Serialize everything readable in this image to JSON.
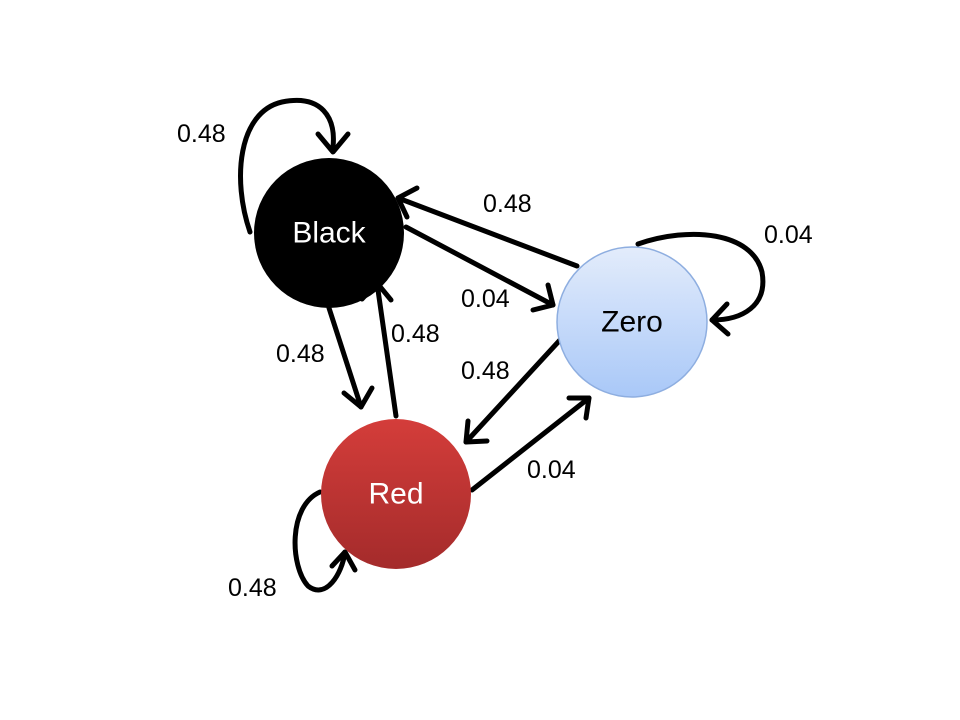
{
  "nodes": {
    "black": {
      "label": "Black",
      "fill": "#000000",
      "text_color": "#ffffff"
    },
    "zero": {
      "label": "Zero",
      "fill_top": "#e3ecfb",
      "fill_bottom": "#a9c8f8",
      "stroke": "#8eaee0",
      "text_color": "#000000"
    },
    "red": {
      "label": "Red",
      "fill_top": "#d43d3a",
      "fill_bottom": "#a42b2b",
      "text_color": "#ffffff"
    }
  },
  "edges": {
    "black_black": {
      "from": "Black",
      "to": "Black",
      "label": "0.48"
    },
    "zero_black": {
      "from": "Zero",
      "to": "Black",
      "label": "0.48"
    },
    "zero_zero": {
      "from": "Zero",
      "to": "Zero",
      "label": "0.04"
    },
    "black_zero": {
      "from": "Black",
      "to": "Zero",
      "label": "0.04"
    },
    "black_red": {
      "from": "Black",
      "to": "Red",
      "label": "0.48"
    },
    "red_black": {
      "from": "Red",
      "to": "Black",
      "label": "0.48"
    },
    "zero_red": {
      "from": "Zero",
      "to": "Red",
      "label": "0.48"
    },
    "red_zero": {
      "from": "Red",
      "to": "Zero",
      "label": "0.04"
    },
    "red_red": {
      "from": "Red",
      "to": "Red",
      "label": "0.48"
    }
  }
}
